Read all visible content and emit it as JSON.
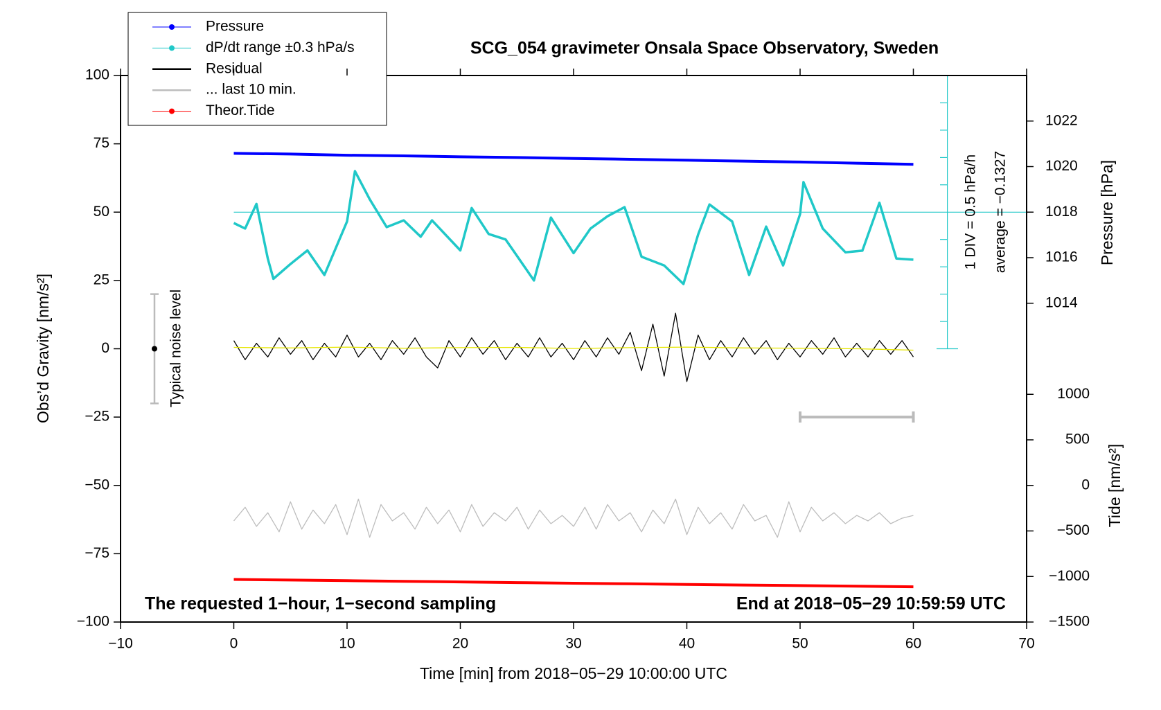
{
  "chart_data": {
    "type": "line",
    "title": "SCG_054 gravimeter Onsala Space Observatory, Sweden",
    "xlabel": "Time [min] from 2018−05−29 10:00:00 UTC",
    "ylabel": "Obs’d Gravity [nm/s²]",
    "y2label": "Pressure [hPa]",
    "y3label": "Tide [nm/s²]",
    "annotations": [
      "The requested 1−hour, 1−second sampling",
      "End at 2018−05−29 10:59:59 UTC",
      "1 DIV = 0.5 hPa/h",
      "average = −0.1327",
      "Typical noise level"
    ],
    "xlim": [
      -10,
      70
    ],
    "xticks": [
      {
        "value": -10,
        "label": "−10"
      },
      0,
      10,
      20,
      30,
      40,
      50,
      60,
      70
    ],
    "ylim": [
      -100,
      100
    ],
    "yticks": [
      {
        "value": -100,
        "label": "−100"
      },
      {
        "value": -75,
        "label": "−75"
      },
      {
        "value": -50,
        "label": "−50"
      },
      {
        "value": -25,
        "label": "−25"
      },
      0,
      25,
      50,
      75,
      100
    ],
    "y2lim": [
      1000,
      1024
    ],
    "y2ticks": [
      1014,
      1016,
      1018,
      1020,
      1022
    ],
    "y3lim": [
      -1500,
      4500
    ],
    "y3ticks": [
      {
        "value": -1500,
        "label": "−1500"
      },
      {
        "value": -1000,
        "label": "−1000"
      },
      {
        "value": -500,
        "label": "−500"
      },
      0,
      500,
      1000
    ],
    "legend": "upper left",
    "x": [
      0,
      1,
      2,
      3,
      4,
      5,
      6,
      7,
      8,
      9,
      10,
      11,
      12,
      13,
      14,
      15,
      16,
      17,
      18,
      19,
      20,
      21,
      22,
      23,
      24,
      25,
      26,
      27,
      28,
      29,
      30,
      31,
      32,
      33,
      34,
      35,
      36,
      37,
      38,
      39,
      40,
      41,
      42,
      43,
      44,
      45,
      46,
      47,
      48,
      49,
      50,
      51,
      52,
      53,
      54,
      55,
      56,
      57,
      58,
      59,
      60
    ],
    "series": [
      {
        "name": "Pressure",
        "color": "#0000ff",
        "axis": "y2",
        "legend_marker": true,
        "x": [
          0,
          5,
          10,
          15,
          20,
          25,
          30,
          35,
          40,
          45,
          50,
          55,
          60
        ],
        "values": [
          1020.58,
          1020.55,
          1020.5,
          1020.47,
          1020.43,
          1020.4,
          1020.36,
          1020.32,
          1020.28,
          1020.24,
          1020.2,
          1020.15,
          1020.1
        ]
      },
      {
        "name": "dP/dt range ±0.3 hPa/s",
        "color": "#20c8c8",
        "legend_marker": true,
        "x": [
          0,
          1,
          2,
          3,
          3.5,
          5,
          6.5,
          8,
          10,
          10.7,
          12,
          13.5,
          15,
          16.5,
          17.5,
          20,
          21,
          22.5,
          24,
          25,
          26.5,
          28,
          30,
          31.5,
          33,
          34.5,
          36,
          38,
          39.7,
          41,
          42,
          44,
          45.5,
          47,
          48.5,
          50,
          50.3,
          52,
          54,
          55.5,
          57,
          58.5,
          60
        ],
        "values": [
          46,
          44,
          53,
          33,
          25.6,
          31,
          36,
          27,
          46.6,
          65,
          54.7,
          44.5,
          47,
          41,
          47,
          36,
          51.5,
          42,
          40,
          34,
          25,
          48,
          35,
          44,
          48.5,
          51.8,
          33.7,
          30.5,
          23.7,
          41.8,
          52.8,
          46.6,
          27,
          44.7,
          30.5,
          49.3,
          61,
          44,
          35.3,
          35.9,
          53.4,
          33,
          32.6
        ]
      },
      {
        "name": "Residual",
        "color": "#000000",
        "values": [
          3,
          -4,
          2,
          -3,
          4,
          -2,
          3,
          -4,
          2,
          -3,
          5,
          -3,
          2,
          -4,
          3,
          -2,
          4,
          -3,
          -7,
          3,
          -3,
          4,
          -2,
          3,
          -4,
          2,
          -3,
          4,
          -3,
          2,
          -4,
          3,
          -3,
          4,
          -2,
          6,
          -8,
          9,
          -10,
          13,
          -12,
          5,
          -4,
          3,
          -3,
          4,
          -2,
          3,
          -4,
          2,
          -3,
          3,
          -2,
          4,
          -3,
          2,
          -3,
          3,
          -2,
          3,
          -3
        ]
      },
      {
        "name": "... last 10 min.",
        "color": "#bdbdbd",
        "values": [
          -63,
          -58,
          -65,
          -60,
          -67,
          -56,
          -66,
          -59,
          -64,
          -57,
          -68,
          -55,
          -69,
          -57,
          -63,
          -60,
          -66,
          -58,
          -64,
          -59,
          -67,
          -57,
          -65,
          -60,
          -63,
          -58,
          -66,
          -59,
          -64,
          -61,
          -65,
          -58,
          -66,
          -57,
          -63,
          -60,
          -67,
          -59,
          -64,
          -55,
          -68,
          -58,
          -64,
          -60,
          -66,
          -57,
          -63,
          -61,
          -69,
          -56,
          -67,
          -58,
          -63,
          -60,
          -64,
          -61,
          -63,
          -60,
          -64,
          -62,
          -61
        ]
      },
      {
        "name": "Theor.Tide",
        "color": "#ff0000",
        "axis": "y3",
        "legend_marker": true,
        "x": [
          0,
          5,
          10,
          15,
          20,
          25,
          30,
          35,
          40,
          45,
          50,
          55,
          60
        ],
        "values": [
          -1032,
          -1039,
          -1046,
          -1053,
          -1060,
          -1067,
          -1074,
          -1080,
          -1087,
          -1094,
          -1100,
          -1107,
          -1113
        ]
      },
      {
        "color": "#e6e600",
        "x": [
          0,
          5,
          10,
          15,
          20,
          25,
          30,
          35,
          40,
          45,
          50,
          55,
          60
        ],
        "values": [
          0.5,
          0.3,
          0.6,
          0.2,
          0.4,
          0.5,
          0.1,
          0.4,
          0.6,
          0.3,
          0.2,
          0,
          -0.5
        ]
      }
    ]
  }
}
